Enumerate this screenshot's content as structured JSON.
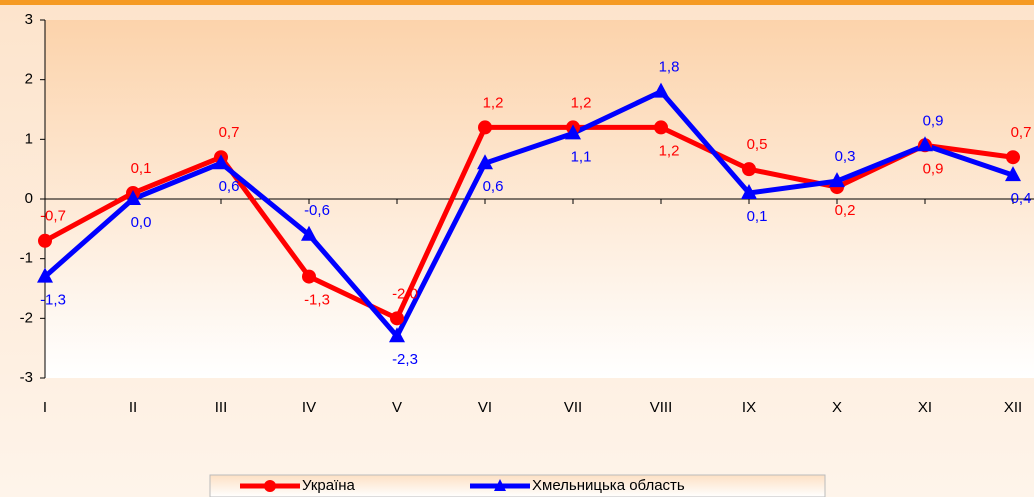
{
  "chart_data": {
    "type": "line",
    "categories": [
      "I",
      "II",
      "III",
      "IV",
      "V",
      "VI",
      "VII",
      "VIII",
      "IX",
      "X",
      "XI",
      "XII"
    ],
    "series": [
      {
        "name": "Україна",
        "color": "#ff0000",
        "marker": "circle",
        "values": [
          -0.7,
          0.1,
          0.7,
          -1.3,
          -2.0,
          1.2,
          1.2,
          1.2,
          0.5,
          0.2,
          0.9,
          0.7
        ],
        "value_labels": [
          "-0,7",
          "0,1",
          "0,7",
          "-1,3",
          "-2,0",
          "1,2",
          "1,2",
          "1,2",
          "0,5",
          "0,2",
          "0,9",
          "0,7"
        ]
      },
      {
        "name": "Хмельницька область",
        "color": "#0000ff",
        "marker": "triangle",
        "values": [
          -1.3,
          0.0,
          0.6,
          -0.6,
          -2.3,
          0.6,
          1.1,
          1.8,
          0.1,
          0.3,
          0.9,
          0.4
        ],
        "value_labels": [
          "-1,3",
          "0,0",
          "0,6",
          "-0,6",
          "-2,3",
          "0,6",
          "1,1",
          "1,8",
          "0,1",
          "0,3",
          "0,9",
          "0,4"
        ]
      }
    ],
    "ylim": [
      -3,
      3
    ],
    "yticks": [
      -3,
      -2,
      -1,
      0,
      1,
      2,
      3
    ],
    "grid": false,
    "legend": "bottom"
  }
}
